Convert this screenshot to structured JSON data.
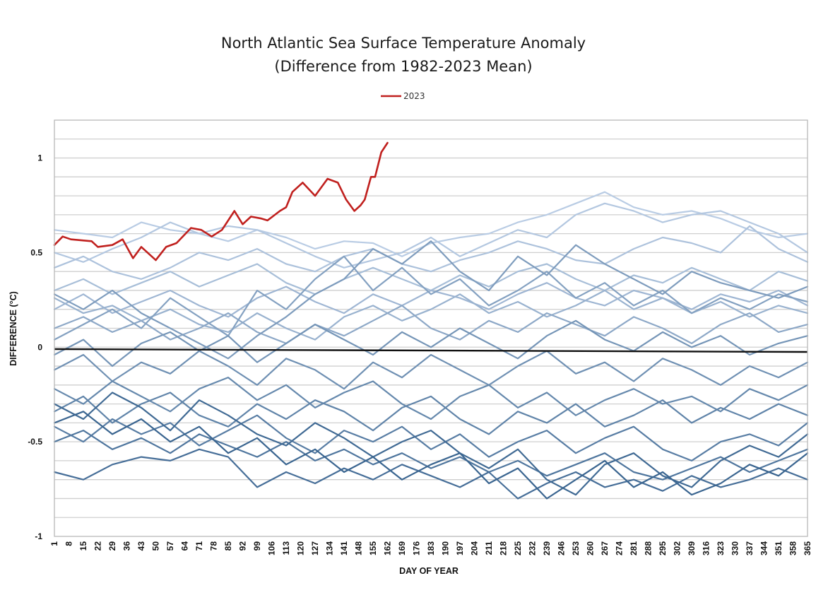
{
  "chart_data": {
    "type": "line",
    "title": "North Atlantic Sea Surface Temperature Anomaly",
    "subtitle": "(Difference from 1982-2023 Mean)",
    "xlabel": "DAY OF YEAR",
    "ylabel": "DIFFERENCE (°C)",
    "xlim": [
      1,
      365
    ],
    "ylim": [
      -1,
      1.2
    ],
    "y_gridline_step": 0.1,
    "grid": true,
    "legend": {
      "placement": "top-center",
      "entries": [
        {
          "name": "2023",
          "color": "#c0201e"
        }
      ]
    },
    "y_ticks": [
      {
        "value": 1,
        "label": "1"
      },
      {
        "value": 0.5,
        "label": "0.5"
      },
      {
        "value": 0,
        "label": "0"
      },
      {
        "value": -0.5,
        "label": "-0.5"
      },
      {
        "value": -1,
        "label": "-1"
      }
    ],
    "x_ticks": [
      "1",
      "8",
      "15",
      "22",
      "29",
      "36",
      "43",
      "50",
      "57",
      "64",
      "71",
      "78",
      "85",
      "92",
      "99",
      "106",
      "113",
      "120",
      "127",
      "134",
      "141",
      "148",
      "155",
      "162",
      "169",
      "176",
      "183",
      "190",
      "197",
      "204",
      "211",
      "218",
      "225",
      "232",
      "239",
      "246",
      "253",
      "260",
      "267",
      "274",
      "281",
      "288",
      "295",
      "302",
      "309",
      "316",
      "323",
      "330",
      "337",
      "344",
      "351",
      "358",
      "365"
    ],
    "highlight_series": {
      "name": "2023",
      "color": "#c0201e",
      "x": [
        1,
        5,
        9,
        19,
        22,
        29,
        34,
        39,
        43,
        50,
        55,
        60,
        67,
        72,
        77,
        82,
        88,
        92,
        96,
        101,
        104,
        110,
        113,
        116,
        121,
        127,
        133,
        138,
        142,
        146,
        149,
        151,
        154,
        156,
        159,
        162
      ],
      "values": [
        0.54,
        0.585,
        0.57,
        0.56,
        0.53,
        0.54,
        0.57,
        0.47,
        0.53,
        0.46,
        0.53,
        0.55,
        0.63,
        0.62,
        0.585,
        0.62,
        0.72,
        0.65,
        0.69,
        0.68,
        0.67,
        0.72,
        0.74,
        0.82,
        0.87,
        0.8,
        0.89,
        0.87,
        0.78,
        0.72,
        0.75,
        0.78,
        0.9,
        0.9,
        1.03,
        1.08
      ]
    },
    "mean_line": {
      "name": "mean",
      "color": "#111111",
      "x": [
        1,
        365
      ],
      "values": [
        -0.01,
        -0.025
      ]
    },
    "background_series_x": [
      1,
      15,
      29,
      43,
      57,
      71,
      85,
      99,
      113,
      127,
      141,
      155,
      169,
      183,
      197,
      211,
      225,
      239,
      253,
      267,
      281,
      295,
      309,
      323,
      337,
      351,
      365
    ],
    "background_series": [
      {
        "shade": 0.1,
        "values": [
          0.62,
          0.6,
          0.58,
          0.66,
          0.62,
          0.6,
          0.56,
          0.62,
          0.58,
          0.52,
          0.56,
          0.55,
          0.48,
          0.55,
          0.58,
          0.6,
          0.66,
          0.7,
          0.76,
          0.82,
          0.74,
          0.7,
          0.72,
          0.68,
          0.62,
          0.58,
          0.6
        ]
      },
      {
        "shade": 0.14,
        "values": [
          0.5,
          0.45,
          0.52,
          0.58,
          0.66,
          0.6,
          0.64,
          0.62,
          0.55,
          0.48,
          0.42,
          0.46,
          0.5,
          0.58,
          0.48,
          0.55,
          0.62,
          0.58,
          0.7,
          0.76,
          0.72,
          0.66,
          0.7,
          0.72,
          0.66,
          0.6,
          0.5
        ]
      },
      {
        "shade": 0.18,
        "values": [
          0.42,
          0.48,
          0.4,
          0.36,
          0.42,
          0.5,
          0.46,
          0.52,
          0.44,
          0.4,
          0.48,
          0.52,
          0.44,
          0.4,
          0.46,
          0.5,
          0.56,
          0.52,
          0.46,
          0.44,
          0.52,
          0.58,
          0.55,
          0.5,
          0.64,
          0.52,
          0.45
        ]
      },
      {
        "shade": 0.22,
        "values": [
          0.3,
          0.36,
          0.28,
          0.34,
          0.4,
          0.32,
          0.38,
          0.44,
          0.34,
          0.28,
          0.36,
          0.42,
          0.36,
          0.3,
          0.38,
          0.32,
          0.4,
          0.44,
          0.36,
          0.3,
          0.38,
          0.34,
          0.42,
          0.36,
          0.3,
          0.4,
          0.35
        ]
      },
      {
        "shade": 0.28,
        "values": [
          0.2,
          0.28,
          0.18,
          0.24,
          0.3,
          0.22,
          0.16,
          0.26,
          0.32,
          0.24,
          0.18,
          0.28,
          0.22,
          0.3,
          0.26,
          0.2,
          0.28,
          0.34,
          0.26,
          0.22,
          0.3,
          0.26,
          0.2,
          0.28,
          0.24,
          0.3,
          0.22
        ]
      },
      {
        "shade": 0.32,
        "values": [
          0.26,
          0.18,
          0.22,
          0.14,
          0.2,
          0.12,
          0.08,
          0.18,
          0.1,
          0.04,
          0.16,
          0.22,
          0.14,
          0.2,
          0.28,
          0.18,
          0.24,
          0.16,
          0.22,
          0.3,
          0.2,
          0.26,
          0.18,
          0.24,
          0.16,
          0.22,
          0.18
        ]
      },
      {
        "shade": 0.4,
        "values": [
          0.1,
          0.16,
          0.08,
          0.14,
          0.04,
          0.1,
          0.18,
          0.08,
          0.02,
          0.12,
          0.06,
          0.14,
          0.22,
          0.1,
          0.04,
          0.14,
          0.08,
          0.18,
          0.12,
          0.06,
          0.16,
          0.1,
          0.02,
          0.12,
          0.18,
          0.08,
          0.12
        ]
      },
      {
        "shade": 0.46,
        "values": [
          0.04,
          0.12,
          0.2,
          0.1,
          0.26,
          0.16,
          0.06,
          0.3,
          0.2,
          0.36,
          0.48,
          0.3,
          0.42,
          0.28,
          0.36,
          0.22,
          0.3,
          0.4,
          0.26,
          0.34,
          0.22,
          0.3,
          0.18,
          0.26,
          0.2,
          0.28,
          0.24
        ]
      },
      {
        "shade": 0.5,
        "values": [
          0.28,
          0.2,
          0.3,
          0.18,
          0.1,
          0.02,
          -0.06,
          0.06,
          0.16,
          0.28,
          0.36,
          0.52,
          0.44,
          0.56,
          0.4,
          0.3,
          0.48,
          0.38,
          0.54,
          0.44,
          0.36,
          0.28,
          0.4,
          0.34,
          0.3,
          0.26,
          0.32
        ]
      },
      {
        "shade": 0.56,
        "values": [
          -0.04,
          0.04,
          -0.1,
          0.02,
          0.08,
          -0.02,
          0.06,
          -0.08,
          0.02,
          0.12,
          0.04,
          -0.04,
          0.08,
          0.0,
          0.1,
          0.02,
          -0.06,
          0.06,
          0.14,
          0.04,
          -0.02,
          0.08,
          0.0,
          0.06,
          -0.04,
          0.02,
          0.06
        ]
      },
      {
        "shade": 0.6,
        "values": [
          -0.12,
          -0.04,
          -0.18,
          -0.08,
          -0.14,
          -0.02,
          -0.1,
          -0.2,
          -0.06,
          -0.12,
          -0.22,
          -0.08,
          -0.16,
          -0.04,
          -0.12,
          -0.2,
          -0.1,
          -0.02,
          -0.14,
          -0.08,
          -0.18,
          -0.06,
          -0.12,
          -0.2,
          -0.1,
          -0.16,
          -0.08
        ]
      },
      {
        "shade": 0.66,
        "values": [
          -0.22,
          -0.3,
          -0.18,
          -0.26,
          -0.34,
          -0.22,
          -0.16,
          -0.28,
          -0.2,
          -0.32,
          -0.24,
          -0.18,
          -0.3,
          -0.38,
          -0.26,
          -0.2,
          -0.32,
          -0.24,
          -0.36,
          -0.28,
          -0.22,
          -0.3,
          -0.26,
          -0.34,
          -0.22,
          -0.28,
          -0.2
        ]
      },
      {
        "shade": 0.7,
        "values": [
          -0.34,
          -0.26,
          -0.4,
          -0.3,
          -0.24,
          -0.36,
          -0.42,
          -0.3,
          -0.38,
          -0.28,
          -0.34,
          -0.44,
          -0.32,
          -0.26,
          -0.38,
          -0.46,
          -0.34,
          -0.4,
          -0.3,
          -0.42,
          -0.36,
          -0.28,
          -0.4,
          -0.32,
          -0.38,
          -0.3,
          -0.36
        ]
      },
      {
        "shade": 0.76,
        "values": [
          -0.42,
          -0.5,
          -0.38,
          -0.46,
          -0.4,
          -0.52,
          -0.44,
          -0.36,
          -0.48,
          -0.56,
          -0.44,
          -0.5,
          -0.42,
          -0.54,
          -0.46,
          -0.58,
          -0.5,
          -0.44,
          -0.56,
          -0.48,
          -0.42,
          -0.54,
          -0.6,
          -0.5,
          -0.46,
          -0.52,
          -0.4
        ]
      },
      {
        "shade": 0.82,
        "values": [
          -0.5,
          -0.44,
          -0.54,
          -0.48,
          -0.56,
          -0.46,
          -0.52,
          -0.58,
          -0.5,
          -0.6,
          -0.54,
          -0.62,
          -0.56,
          -0.64,
          -0.58,
          -0.66,
          -0.6,
          -0.68,
          -0.62,
          -0.56,
          -0.66,
          -0.7,
          -0.64,
          -0.58,
          -0.66,
          -0.6,
          -0.54
        ]
      },
      {
        "shade": 0.88,
        "values": [
          -0.66,
          -0.7,
          -0.62,
          -0.58,
          -0.6,
          -0.54,
          -0.58,
          -0.74,
          -0.66,
          -0.72,
          -0.64,
          -0.7,
          -0.62,
          -0.68,
          -0.74,
          -0.66,
          -0.8,
          -0.72,
          -0.66,
          -0.74,
          -0.7,
          -0.76,
          -0.68,
          -0.74,
          -0.7,
          -0.64,
          -0.7
        ]
      },
      {
        "shade": 0.92,
        "values": [
          -0.3,
          -0.38,
          -0.24,
          -0.32,
          -0.44,
          -0.28,
          -0.36,
          -0.46,
          -0.52,
          -0.4,
          -0.48,
          -0.58,
          -0.5,
          -0.44,
          -0.56,
          -0.64,
          -0.54,
          -0.7,
          -0.78,
          -0.62,
          -0.56,
          -0.68,
          -0.74,
          -0.6,
          -0.52,
          -0.58,
          -0.46
        ]
      },
      {
        "shade": 0.96,
        "values": [
          -0.4,
          -0.34,
          -0.46,
          -0.38,
          -0.5,
          -0.42,
          -0.56,
          -0.48,
          -0.62,
          -0.54,
          -0.66,
          -0.58,
          -0.7,
          -0.62,
          -0.56,
          -0.72,
          -0.64,
          -0.8,
          -0.7,
          -0.6,
          -0.74,
          -0.66,
          -0.78,
          -0.72,
          -0.62,
          -0.68,
          -0.56
        ]
      }
    ]
  }
}
